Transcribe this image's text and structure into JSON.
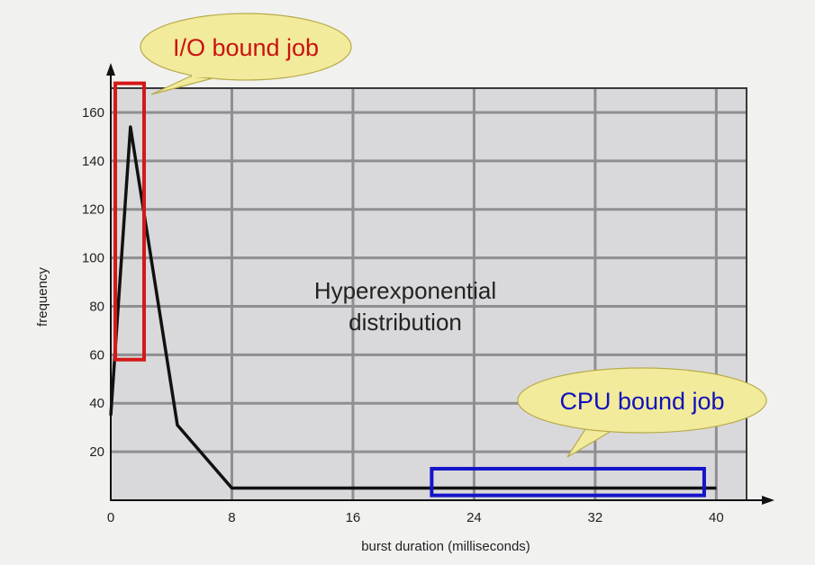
{
  "chart_data": {
    "type": "line",
    "title": "",
    "xlabel": "burst duration (milliseconds)",
    "ylabel": "frequency",
    "xlim": [
      0,
      42
    ],
    "ylim": [
      0,
      170
    ],
    "xticks": [
      0,
      8,
      16,
      24,
      32,
      40
    ],
    "yticks": [
      20,
      40,
      60,
      80,
      100,
      120,
      140,
      160
    ],
    "grid": true,
    "colors": {
      "background": "#f1f1f0",
      "plot_area": "#d9d9db",
      "grid": "#8f8f92",
      "line": "#111111",
      "io_box": "#d41818",
      "cpu_box": "#1414c8",
      "io_text": "#cc1111",
      "cpu_text": "#1010bb",
      "callout_fill": "#f2eb9c"
    },
    "series": [
      {
        "x": [
          0,
          1.3,
          4.4,
          8,
          40
        ],
        "y": [
          35,
          154,
          31,
          5,
          5
        ]
      }
    ],
    "annotations": {
      "center_text": [
        "Hyperexponential",
        "distribution"
      ]
    },
    "callouts": [
      {
        "id": "io",
        "text": "I/O bound job",
        "box_x": [
          0.3,
          2.2
        ],
        "box_y": [
          58,
          172
        ]
      },
      {
        "id": "cpu",
        "text": "CPU bound job",
        "box_x": [
          21.2,
          39.2
        ],
        "box_y": [
          2,
          13
        ]
      }
    ]
  }
}
